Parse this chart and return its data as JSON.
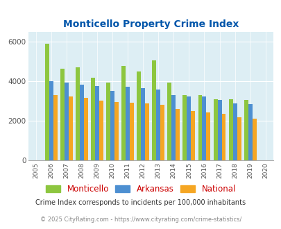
{
  "title": "Monticello Property Crime Index",
  "years": [
    2005,
    2006,
    2007,
    2008,
    2009,
    2010,
    2011,
    2012,
    2013,
    2014,
    2015,
    2016,
    2017,
    2018,
    2019,
    2020
  ],
  "monticello": [
    null,
    5900,
    4650,
    4700,
    4200,
    3950,
    4800,
    4500,
    5050,
    3950,
    3300,
    3300,
    3100,
    3100,
    3050,
    null
  ],
  "arkansas": [
    null,
    4000,
    3950,
    3820,
    3780,
    3520,
    3720,
    3650,
    3580,
    3300,
    3220,
    3250,
    3050,
    2900,
    2850,
    null
  ],
  "national": [
    null,
    3300,
    3250,
    3150,
    3020,
    2950,
    2930,
    2900,
    2820,
    2600,
    2480,
    2420,
    2360,
    2170,
    2110,
    null
  ],
  "monticello_color": "#8dc63f",
  "arkansas_color": "#4d8fd1",
  "national_color": "#f5a623",
  "bg_color": "#ddeef4",
  "title_color": "#0055aa",
  "legend_label_color": "#cc0000",
  "ylabel_max": 6000,
  "subtitle": "Crime Index corresponds to incidents per 100,000 inhabitants",
  "footer": "© 2025 CityRating.com - https://www.cityrating.com/crime-statistics/",
  "footer_color": "#888888",
  "subtitle_color": "#333333"
}
